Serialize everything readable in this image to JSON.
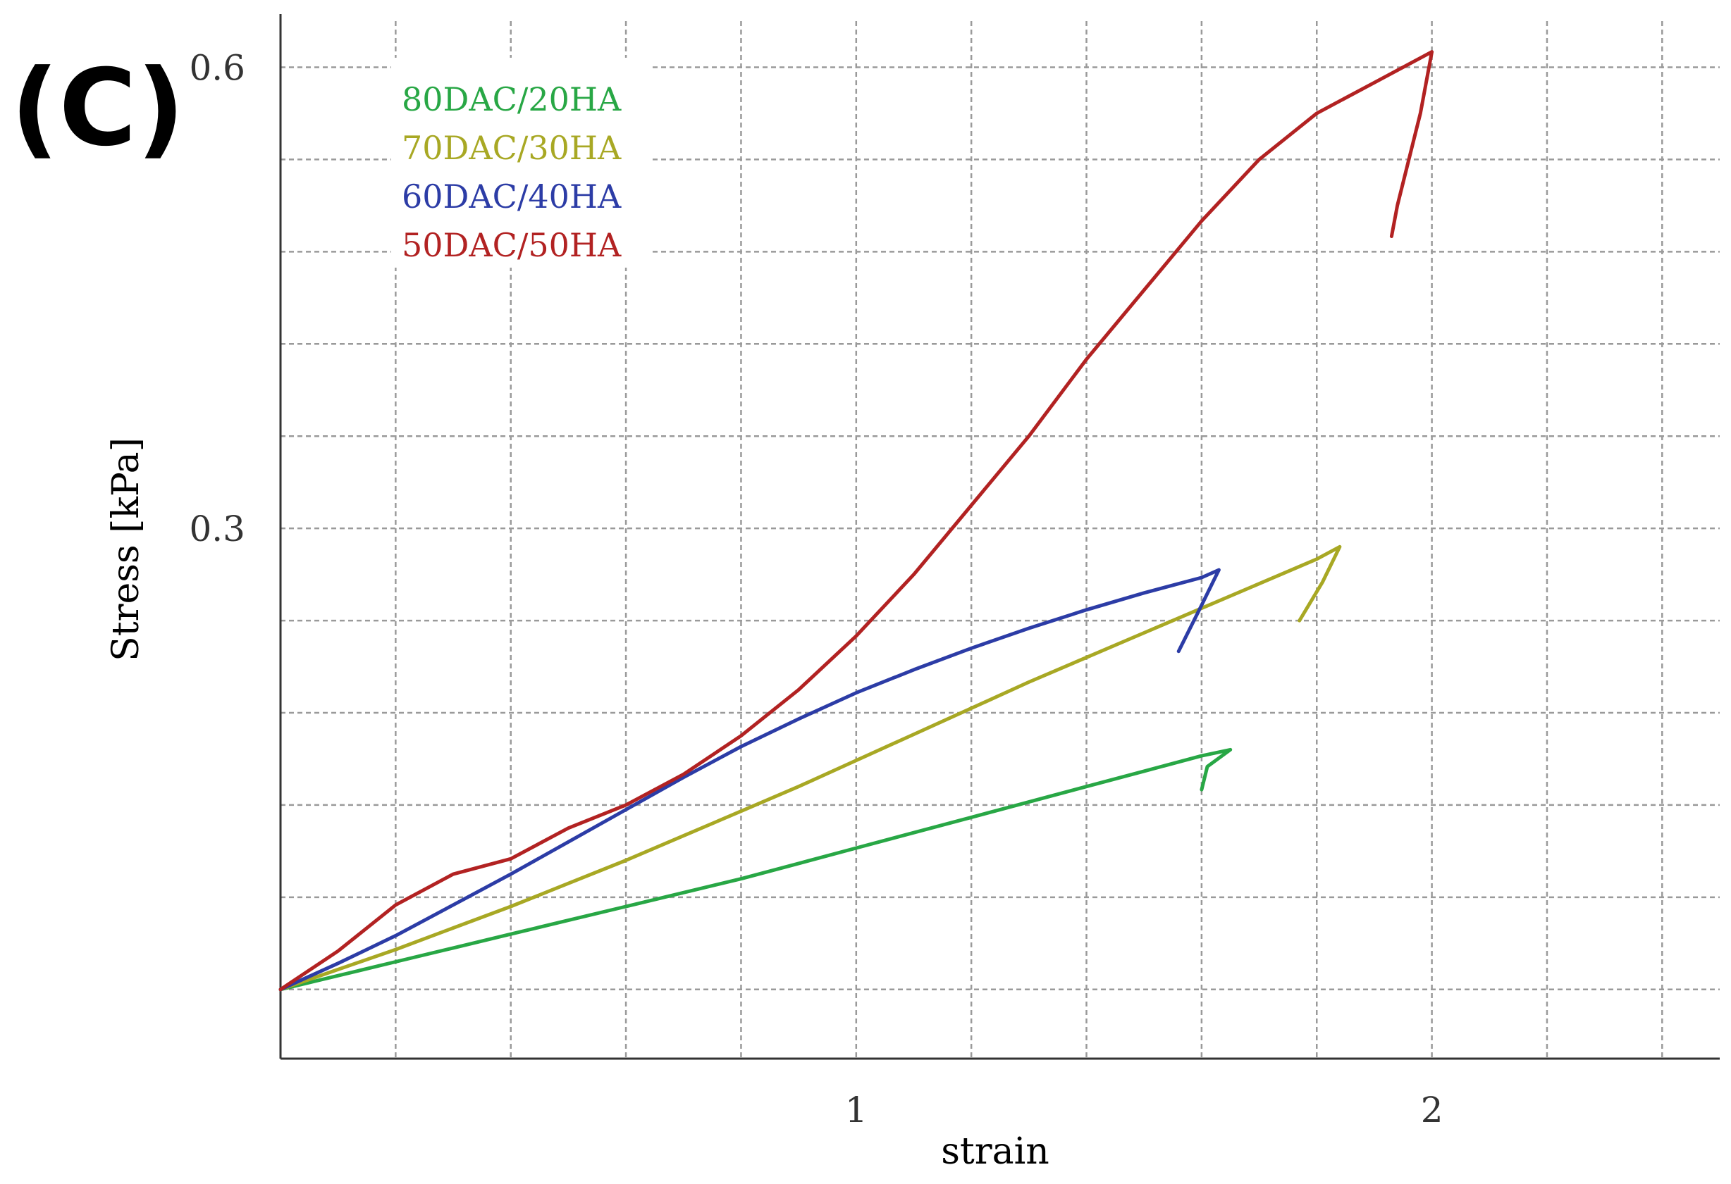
{
  "panel_label": "(C)",
  "chart_data": {
    "type": "line",
    "title": "",
    "xlabel": "strain",
    "ylabel": "Stress [kPa]",
    "xlim": [
      0,
      2.5
    ],
    "ylim": [
      -0.045,
      0.63
    ],
    "x_ticks": [
      1,
      2
    ],
    "x_tick_labels": [
      "1",
      "2"
    ],
    "y_ticks": [
      0.3,
      0.6
    ],
    "y_tick_labels": [
      "0.3",
      "0.6"
    ],
    "x_grid_step": 0.2,
    "y_grid_step": 0.06,
    "grid": true,
    "legend": {
      "position": "top-left",
      "entries": [
        "80DAC/20HA",
        "70DAC/30HA",
        "60DAC/40HA",
        "50DAC/50HA"
      ]
    },
    "series": [
      {
        "name": "80DAC/20HA",
        "color": "#28a745",
        "x": [
          0,
          0.1,
          0.2,
          0.3,
          0.4,
          0.5,
          0.6,
          0.7,
          0.8,
          0.9,
          1.0,
          1.1,
          1.2,
          1.3,
          1.4,
          1.5,
          1.6,
          1.65,
          1.61,
          1.6
        ],
        "y": [
          0.0,
          0.009,
          0.018,
          0.027,
          0.036,
          0.045,
          0.054,
          0.063,
          0.072,
          0.082,
          0.092,
          0.102,
          0.112,
          0.122,
          0.132,
          0.142,
          0.152,
          0.156,
          0.145,
          0.13
        ]
      },
      {
        "name": "70DAC/30HA",
        "color": "#a8a824",
        "x": [
          0,
          0.1,
          0.2,
          0.3,
          0.4,
          0.5,
          0.6,
          0.7,
          0.8,
          0.9,
          1.0,
          1.1,
          1.2,
          1.3,
          1.4,
          1.5,
          1.6,
          1.7,
          1.8,
          1.84,
          1.81,
          1.77
        ],
        "y": [
          0.0,
          0.013,
          0.026,
          0.04,
          0.054,
          0.069,
          0.084,
          0.1,
          0.116,
          0.132,
          0.149,
          0.166,
          0.183,
          0.2,
          0.216,
          0.232,
          0.248,
          0.264,
          0.28,
          0.288,
          0.265,
          0.24
        ]
      },
      {
        "name": "60DAC/40HA",
        "color": "#2c3ca6",
        "x": [
          0,
          0.1,
          0.2,
          0.3,
          0.4,
          0.5,
          0.6,
          0.7,
          0.8,
          0.9,
          1.0,
          1.1,
          1.2,
          1.3,
          1.4,
          1.5,
          1.6,
          1.63,
          1.6,
          1.56
        ],
        "y": [
          0.0,
          0.017,
          0.035,
          0.055,
          0.075,
          0.096,
          0.117,
          0.138,
          0.158,
          0.176,
          0.193,
          0.208,
          0.222,
          0.235,
          0.247,
          0.258,
          0.268,
          0.273,
          0.25,
          0.22
        ]
      },
      {
        "name": "50DAC/50HA",
        "color": "#b22222",
        "x": [
          0,
          0.1,
          0.2,
          0.3,
          0.4,
          0.5,
          0.6,
          0.7,
          0.8,
          0.9,
          1.0,
          1.1,
          1.2,
          1.3,
          1.4,
          1.5,
          1.6,
          1.7,
          1.8,
          1.9,
          2.0,
          1.98,
          1.94,
          1.93
        ],
        "y": [
          0.0,
          0.025,
          0.055,
          0.075,
          0.085,
          0.105,
          0.12,
          0.14,
          0.165,
          0.195,
          0.23,
          0.27,
          0.315,
          0.36,
          0.41,
          0.455,
          0.5,
          0.54,
          0.57,
          0.59,
          0.61,
          0.57,
          0.51,
          0.49
        ]
      }
    ]
  }
}
